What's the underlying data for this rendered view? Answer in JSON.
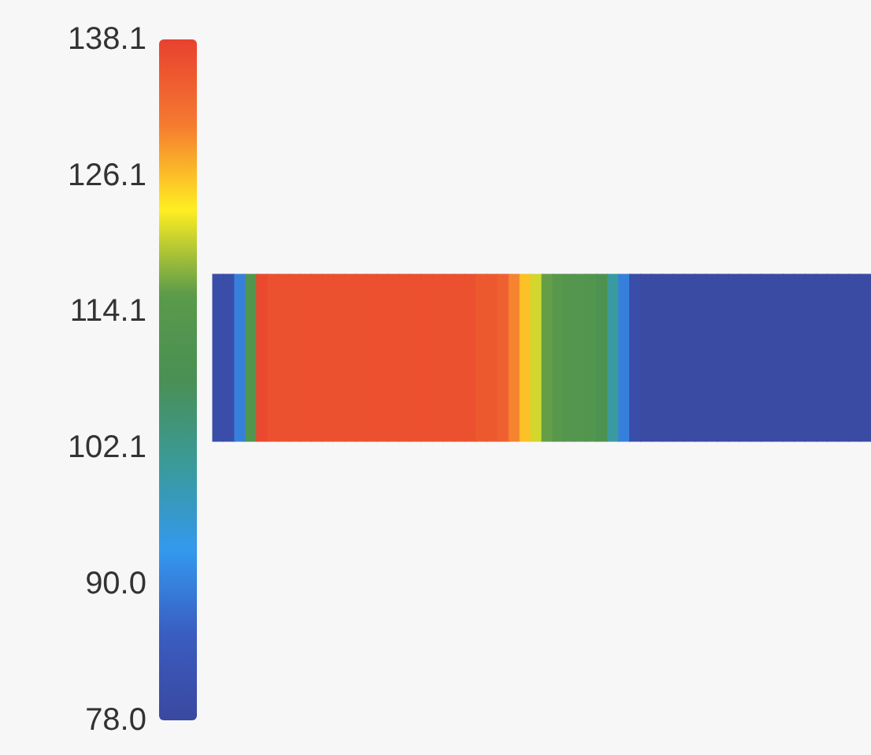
{
  "chart_data": {
    "type": "heatmap",
    "categories": [
      null,
      null,
      null,
      null,
      null,
      null,
      null,
      null,
      null,
      null,
      null,
      null,
      null,
      null,
      null,
      null,
      null,
      null,
      null,
      null,
      null,
      null,
      null,
      null,
      null,
      null,
      null,
      null,
      null,
      null,
      null,
      null,
      null,
      null,
      null,
      null,
      null,
      null,
      null,
      null,
      null,
      null,
      null,
      null,
      null,
      null,
      null,
      null,
      null,
      null,
      null,
      null,
      null,
      null,
      null,
      null,
      null,
      null,
      null,
      null
    ],
    "y_categories": [
      null
    ],
    "cells": [
      [
        80,
        80,
        90,
        112,
        137,
        136,
        136,
        136,
        136,
        136,
        136,
        136,
        136,
        136,
        136,
        136,
        136,
        136,
        136,
        136,
        136,
        136,
        136,
        136,
        135,
        135,
        134,
        130,
        126,
        121,
        116,
        114,
        113,
        113,
        112,
        110,
        100,
        90,
        80,
        79,
        79,
        79,
        79,
        79,
        79,
        79,
        79,
        79,
        79,
        79,
        79,
        79,
        79,
        79,
        79,
        79,
        79,
        79,
        79,
        79
      ]
    ],
    "clim": [
      78,
      138.1
    ],
    "cticks": [
      {
        "value": 78,
        "label": "78.0"
      },
      {
        "value": 90,
        "label": "90.0"
      },
      102.1,
      114.1,
      126.1,
      138.1
    ]
  }
}
